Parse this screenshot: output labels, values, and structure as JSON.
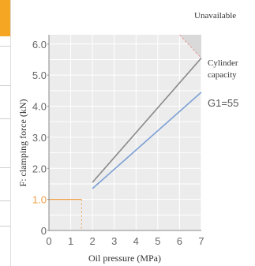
{
  "chart_data": {
    "type": "line",
    "xlabel": "Oil pressure (MPa)",
    "ylabel": "F: clamping force (kN)",
    "xlim": [
      0,
      7
    ],
    "ylim": [
      0,
      6.3
    ],
    "x_ticks": [
      "0",
      "1",
      "2",
      "3",
      "4",
      "5",
      "6",
      "7"
    ],
    "y_ticks": [
      "0",
      "1.0",
      "2.0",
      "3.0",
      "4.0",
      "5.0",
      "6.0"
    ],
    "highlighted_y_tick": "1.0",
    "grid": true,
    "series": [
      {
        "color": "#8a8a8a",
        "x": [
          2,
          7
        ],
        "y": [
          1.55,
          5.55
        ]
      },
      {
        "name": "G1=55",
        "color": "#7b9fd4",
        "x": [
          2,
          7
        ],
        "y": [
          1.35,
          4.45
        ]
      }
    ],
    "guide": {
      "x": 1.5,
      "y": 1.0,
      "color": "#f0a04b"
    },
    "unavailable_region": {
      "x": [
        6,
        7
      ],
      "y": [
        5.55,
        6.3
      ],
      "color": "#d9d9d9"
    },
    "annotations": {
      "unavailable": "Unavailable",
      "cylinder_capacity_line1": "Cylinder",
      "cylinder_capacity_line2": "capacity"
    }
  }
}
